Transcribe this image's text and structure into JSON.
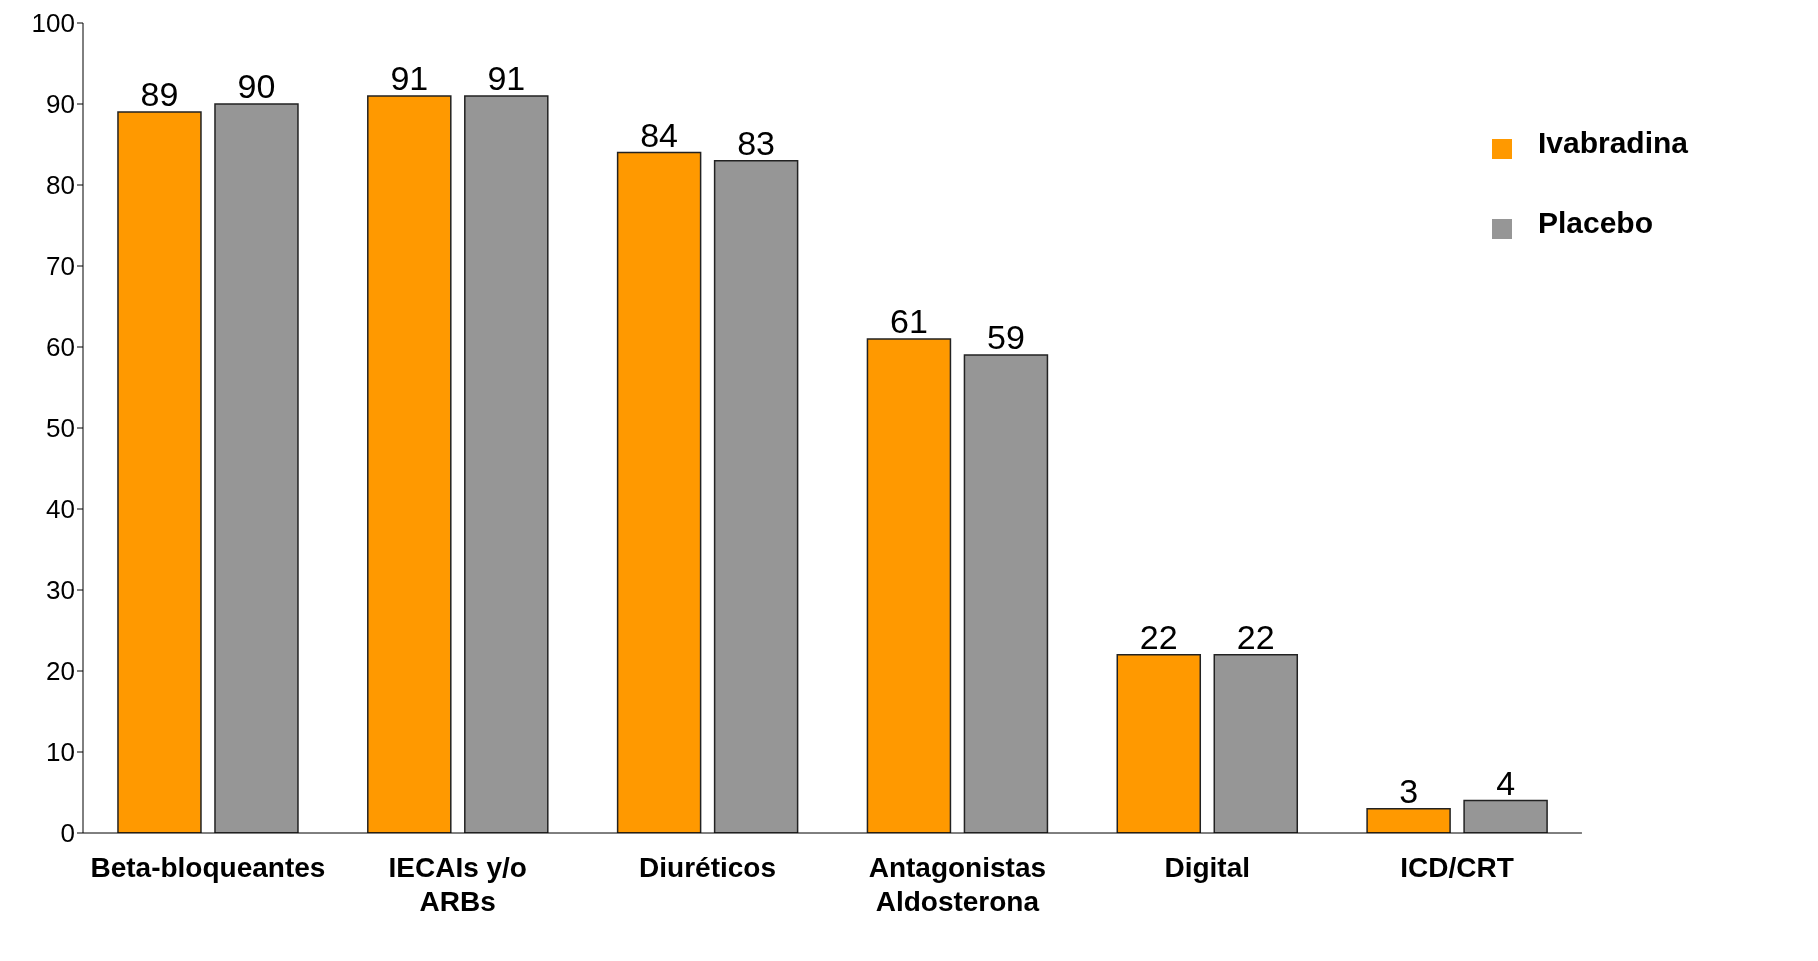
{
  "chart_data": {
    "type": "bar",
    "categories": [
      "Beta-bloqueantes",
      "IECAIs y/o ARBs",
      "Diuréticos",
      "Antagonistas Aldosterona",
      "Digital",
      "ICD/CRT"
    ],
    "series": [
      {
        "name": "Ivabradina",
        "color": "#ff9900",
        "values": [
          89,
          91,
          84,
          61,
          22,
          3
        ]
      },
      {
        "name": "Placebo",
        "color": "#969696",
        "values": [
          90,
          91,
          83,
          59,
          22,
          4
        ]
      }
    ],
    "ylim": [
      0,
      100
    ],
    "yticks": [
      0,
      10,
      20,
      30,
      40,
      50,
      60,
      70,
      80,
      90,
      100
    ],
    "grid": false,
    "legend": "top right",
    "data_labels": true
  }
}
